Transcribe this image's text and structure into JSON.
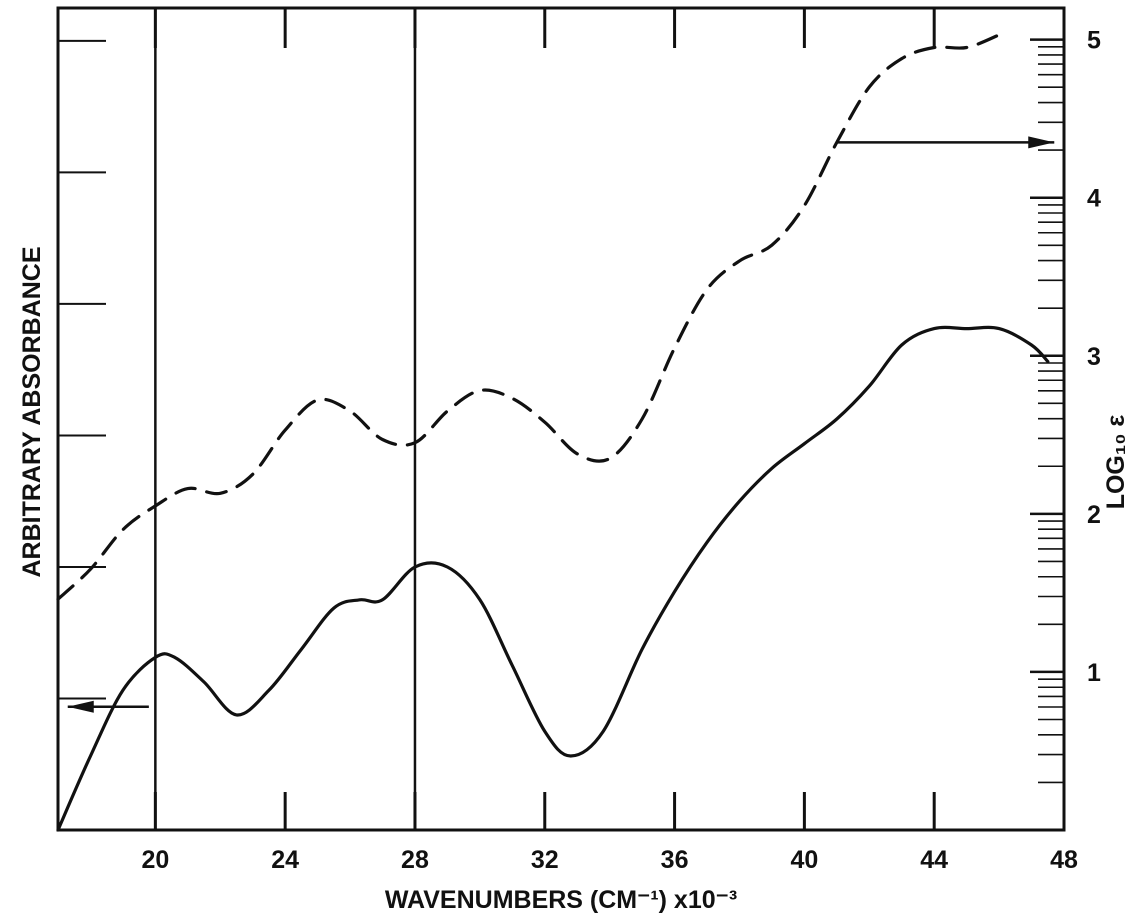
{
  "chart_data": {
    "type": "line",
    "xlabel": "WAVENUMBERS (CM⁻¹) x10⁻³",
    "ylabel_left": "ARBITRARY ABSORBANCE",
    "ylabel_right": "LOG₁₀ ε",
    "xlim": [
      17,
      48
    ],
    "ylim_left": [
      0,
      1
    ],
    "ylim_right": [
      0,
      5.2
    ],
    "x_ticks": [
      20,
      24,
      28,
      32,
      36,
      40,
      44,
      48
    ],
    "y_right_ticks": [
      1,
      2,
      3,
      4,
      5
    ],
    "vertical_lines": [
      20,
      28
    ],
    "grid": false,
    "series": [
      {
        "axis": "left",
        "style": "solid",
        "x": [
          17,
          18,
          19,
          20,
          20.6,
          21.5,
          22.5,
          23.5,
          24.5,
          25.5,
          26.3,
          27,
          28,
          29,
          30,
          31,
          32,
          32.8,
          33.8,
          35,
          36,
          37,
          38,
          39,
          40,
          41,
          42,
          43,
          44,
          45,
          46,
          47,
          47.5
        ],
        "values": [
          0.0,
          0.09,
          0.17,
          0.21,
          0.21,
          0.18,
          0.14,
          0.17,
          0.22,
          0.27,
          0.28,
          0.28,
          0.32,
          0.32,
          0.28,
          0.2,
          0.12,
          0.09,
          0.12,
          0.22,
          0.29,
          0.35,
          0.4,
          0.44,
          0.47,
          0.5,
          0.54,
          0.59,
          0.61,
          0.61,
          0.61,
          0.59,
          0.57
        ]
      },
      {
        "axis": "right",
        "style": "dashed",
        "x": [
          17,
          18,
          19,
          20,
          21,
          22,
          23,
          24,
          25,
          26,
          27,
          28,
          29,
          30,
          31,
          32,
          33,
          34,
          35,
          36,
          37,
          38,
          39,
          40,
          41,
          42,
          43,
          44,
          45,
          46
        ],
        "values": [
          1.46,
          1.65,
          1.9,
          2.05,
          2.16,
          2.13,
          2.25,
          2.53,
          2.72,
          2.65,
          2.47,
          2.45,
          2.65,
          2.78,
          2.73,
          2.58,
          2.38,
          2.35,
          2.6,
          3.05,
          3.42,
          3.6,
          3.7,
          3.95,
          4.35,
          4.7,
          4.88,
          4.95,
          4.95,
          5.03
        ]
      }
    ],
    "annotations": [
      {
        "type": "arrow",
        "direction": "left",
        "axis": "left",
        "from_x": 19.8,
        "to_x": 17.3,
        "y": 0.15
      },
      {
        "type": "arrow",
        "direction": "right",
        "axis": "right",
        "from_x": 41,
        "to_x": 47.7,
        "y": 4.35
      }
    ]
  }
}
